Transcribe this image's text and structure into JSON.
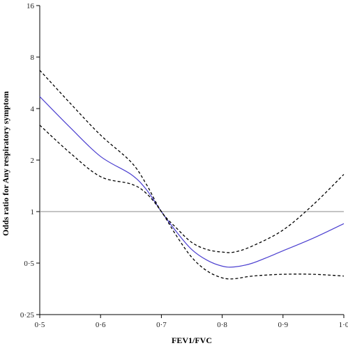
{
  "chart_data": {
    "type": "line",
    "xlabel": "FEV1/FVC",
    "ylabel": "Odds ratio for Any respiratory symptom",
    "xlim": [
      0.5,
      1.0
    ],
    "ylim": [
      0.25,
      16
    ],
    "y_scale": "log2",
    "x_ticks": [
      0.5,
      0.6,
      0.7,
      0.8,
      0.9,
      1.0
    ],
    "x_tick_labels": [
      "0·5",
      "0·6",
      "0·7",
      "0·8",
      "0·9",
      "1·0"
    ],
    "y_ticks": [
      0.25,
      0.5,
      1,
      2,
      4,
      8,
      16
    ],
    "y_tick_labels": [
      "0·25",
      "0·5",
      "1",
      "2",
      "4",
      "8",
      "16"
    ],
    "reference_line": {
      "y": 1,
      "color": "#888888"
    },
    "grid": false,
    "series": [
      {
        "role": "estimate",
        "color": "#4b3fd0",
        "style": "solid",
        "x": [
          0.5,
          0.55,
          0.6,
          0.65,
          0.675,
          0.7,
          0.725,
          0.75,
          0.775,
          0.8,
          0.82,
          0.85,
          0.9,
          0.95,
          1.0
        ],
        "y": [
          4.7,
          3.1,
          2.1,
          1.65,
          1.35,
          1.0,
          0.76,
          0.6,
          0.52,
          0.48,
          0.475,
          0.5,
          0.59,
          0.7,
          0.85
        ]
      },
      {
        "role": "upper-ci",
        "color": "#000000",
        "style": "dashed",
        "x": [
          0.5,
          0.55,
          0.6,
          0.65,
          0.675,
          0.7,
          0.725,
          0.75,
          0.775,
          0.8,
          0.82,
          0.85,
          0.9,
          0.95,
          1.0
        ],
        "y": [
          6.7,
          4.3,
          2.8,
          1.95,
          1.45,
          1.0,
          0.8,
          0.66,
          0.6,
          0.58,
          0.58,
          0.63,
          0.78,
          1.1,
          1.65
        ]
      },
      {
        "role": "lower-ci",
        "color": "#000000",
        "style": "dashed",
        "x": [
          0.5,
          0.55,
          0.6,
          0.65,
          0.675,
          0.7,
          0.725,
          0.75,
          0.775,
          0.8,
          0.82,
          0.85,
          0.9,
          0.95,
          1.0
        ],
        "y": [
          3.2,
          2.2,
          1.6,
          1.45,
          1.28,
          1.0,
          0.72,
          0.54,
          0.45,
          0.41,
          0.405,
          0.42,
          0.43,
          0.43,
          0.42
        ]
      }
    ]
  }
}
